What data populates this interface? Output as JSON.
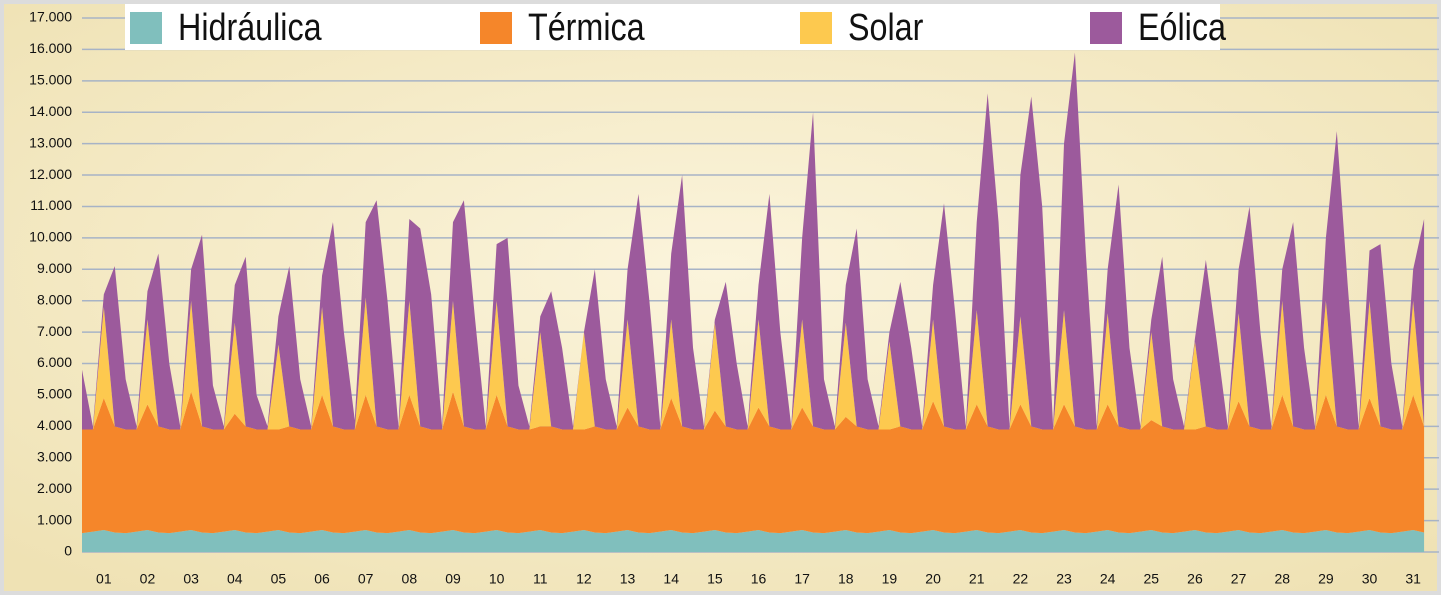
{
  "chart_data": {
    "type": "stacked_area",
    "categories": [
      null,
      null,
      "01",
      null,
      null,
      null,
      "02",
      null,
      null,
      null,
      "03",
      null,
      null,
      null,
      "04",
      null,
      null,
      null,
      "05",
      null,
      null,
      null,
      "06",
      null,
      null,
      null,
      "07",
      null,
      null,
      null,
      "08",
      null,
      null,
      null,
      "09",
      null,
      null,
      null,
      "10",
      null,
      null,
      null,
      "11",
      null,
      null,
      null,
      "12",
      null,
      null,
      null,
      "13",
      null,
      null,
      null,
      "14",
      null,
      null,
      null,
      "15",
      null,
      null,
      null,
      "16",
      null,
      null,
      null,
      "17",
      null,
      null,
      null,
      "18",
      null,
      null,
      null,
      "19",
      null,
      null,
      null,
      "20",
      null,
      null,
      null,
      "21",
      null,
      null,
      null,
      "22",
      null,
      null,
      null,
      "23",
      null,
      null,
      null,
      "24",
      null,
      null,
      null,
      "25",
      null,
      null,
      null,
      "26",
      null,
      null,
      null,
      "27",
      null,
      null,
      null,
      "28",
      null,
      null,
      null,
      "29",
      null,
      null,
      null,
      "30",
      null,
      null,
      null,
      "31",
      null
    ],
    "series": [
      {
        "name": "Hidráulica",
        "color": "#80bfbd",
        "values": [
          600,
          650,
          700,
          620,
          600,
          650,
          700,
          620,
          600,
          650,
          700,
          620,
          600,
          650,
          700,
          620,
          600,
          650,
          700,
          620,
          600,
          650,
          700,
          620,
          600,
          650,
          700,
          620,
          600,
          650,
          700,
          620,
          600,
          650,
          700,
          620,
          600,
          650,
          700,
          620,
          600,
          650,
          700,
          620,
          600,
          650,
          700,
          620,
          600,
          650,
          700,
          620,
          600,
          650,
          700,
          620,
          600,
          650,
          700,
          620,
          600,
          650,
          700,
          620,
          600,
          650,
          700,
          620,
          600,
          650,
          700,
          620,
          600,
          650,
          700,
          620,
          600,
          650,
          700,
          620,
          600,
          650,
          700,
          620,
          600,
          650,
          700,
          620,
          600,
          650,
          700,
          620,
          600,
          650,
          700,
          620,
          600,
          650,
          700,
          620,
          600,
          650,
          700,
          620,
          600,
          650,
          700,
          620,
          600,
          650,
          700,
          620,
          600,
          650,
          700,
          620,
          600,
          650,
          700,
          620,
          600,
          650,
          700,
          620
        ]
      },
      {
        "name": "Térmica",
        "color": "#f5862a",
        "values": [
          3300,
          3250,
          4200,
          3380,
          3300,
          3250,
          4000,
          3380,
          3300,
          3250,
          4400,
          3380,
          3300,
          3250,
          3700,
          3380,
          3300,
          3250,
          3200,
          3380,
          3300,
          3250,
          4300,
          3380,
          3300,
          3250,
          4300,
          3380,
          3300,
          3250,
          4300,
          3380,
          3300,
          3250,
          4400,
          3380,
          3300,
          3250,
          4300,
          3380,
          3300,
          3250,
          3300,
          3380,
          3300,
          3250,
          3200,
          3380,
          3300,
          3250,
          3900,
          3380,
          3300,
          3250,
          4200,
          3380,
          3300,
          3250,
          3800,
          3380,
          3300,
          3250,
          3900,
          3380,
          3300,
          3250,
          3900,
          3380,
          3300,
          3250,
          3600,
          3380,
          3300,
          3250,
          3200,
          3380,
          3300,
          3250,
          4100,
          3380,
          3300,
          3250,
          4000,
          3380,
          3300,
          3250,
          4000,
          3380,
          3300,
          3250,
          4000,
          3380,
          3300,
          3250,
          4000,
          3380,
          3300,
          3250,
          3500,
          3380,
          3300,
          3250,
          3200,
          3380,
          3300,
          3250,
          4100,
          3380,
          3300,
          3250,
          4300,
          3380,
          3300,
          3250,
          4300,
          3380,
          3300,
          3250,
          4200,
          3380,
          3300,
          3250,
          4300,
          3380
        ]
      },
      {
        "name": "Solar",
        "color": "#fdc94f",
        "values": [
          0,
          0,
          2900,
          0,
          0,
          0,
          2700,
          0,
          0,
          0,
          2900,
          0,
          0,
          0,
          2900,
          0,
          0,
          0,
          2700,
          0,
          0,
          0,
          2800,
          0,
          0,
          0,
          3100,
          0,
          0,
          0,
          3000,
          0,
          0,
          0,
          2900,
          0,
          0,
          0,
          3000,
          0,
          0,
          0,
          3000,
          0,
          0,
          0,
          3100,
          0,
          0,
          0,
          2800,
          0,
          0,
          0,
          2500,
          0,
          0,
          0,
          2800,
          0,
          0,
          0,
          2800,
          0,
          0,
          0,
          2800,
          0,
          0,
          0,
          3000,
          0,
          0,
          0,
          2800,
          0,
          0,
          0,
          2600,
          0,
          0,
          0,
          3000,
          0,
          0,
          0,
          2800,
          0,
          0,
          0,
          3000,
          0,
          0,
          0,
          2900,
          0,
          0,
          0,
          2800,
          0,
          0,
          0,
          2800,
          0,
          0,
          0,
          2800,
          0,
          0,
          0,
          3000,
          0,
          0,
          0,
          3000,
          0,
          0,
          0,
          3100,
          0,
          0,
          0,
          3000,
          0
        ]
      },
      {
        "name": "Eólica",
        "color": "#9c5a9c",
        "values": [
          1900,
          100,
          400,
          5100,
          1600,
          100,
          900,
          5500,
          2100,
          100,
          1000,
          6100,
          1400,
          100,
          1200,
          5400,
          1100,
          100,
          900,
          5100,
          1600,
          100,
          1000,
          6500,
          3100,
          300,
          2400,
          7200,
          4100,
          100,
          2600,
          6300,
          4300,
          100,
          2500,
          7200,
          3600,
          100,
          1800,
          6000,
          1400,
          100,
          500,
          4300,
          2600,
          100,
          0,
          5000,
          1600,
          100,
          1600,
          7400,
          4100,
          100,
          2100,
          8000,
          2600,
          100,
          100,
          4600,
          2100,
          100,
          1100,
          7400,
          3100,
          100,
          2600,
          10000,
          1600,
          100,
          1200,
          6300,
          1600,
          100,
          300,
          4600,
          2600,
          100,
          1100,
          7100,
          3800,
          100,
          2800,
          10600,
          6600,
          100,
          4500,
          10500,
          7100,
          100,
          5300,
          11900,
          5600,
          100,
          1400,
          7700,
          2600,
          100,
          400,
          5400,
          1600,
          100,
          100,
          5300,
          2800,
          100,
          1400,
          7000,
          3100,
          100,
          1000,
          6500,
          2600,
          100,
          2000,
          9400,
          4600,
          100,
          1600,
          5800,
          2100,
          100,
          1000,
          6600
        ]
      }
    ],
    "ylim": [
      0,
      17000
    ],
    "yticks": [
      0,
      {
        "value": 1000,
        "label": "1.000"
      },
      {
        "value": 2000,
        "label": "2.000"
      },
      {
        "value": 3000,
        "label": "3.000"
      },
      {
        "value": 4000,
        "label": "4.000"
      },
      {
        "value": 5000,
        "label": "5.000"
      },
      {
        "value": 6000,
        "label": "6.000"
      },
      {
        "value": 7000,
        "label": "7.000"
      },
      {
        "value": 8000,
        "label": "8.000"
      },
      {
        "value": 9000,
        "label": "9.000"
      },
      {
        "value": 10000,
        "label": "10.000"
      },
      {
        "value": 11000,
        "label": "11.000"
      },
      {
        "value": 12000,
        "label": "12.000"
      },
      {
        "value": 13000,
        "label": "13.000"
      },
      {
        "value": 14000,
        "label": "14.000"
      },
      {
        "value": 15000,
        "label": "15.000"
      },
      {
        "value": 16000,
        "label": "16.000"
      },
      {
        "value": 17000,
        "label": "17.000"
      }
    ],
    "grid": true
  }
}
